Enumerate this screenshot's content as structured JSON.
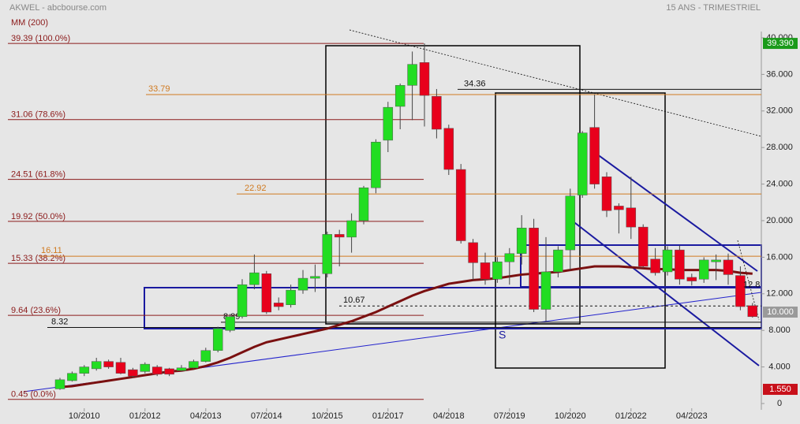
{
  "chart_data": {
    "type": "candlestick",
    "source": "AKWEL - abcbourse.com",
    "subtitle": "MM (200)",
    "period": "15 ANS - TRIMESTRIEL",
    "categories": [
      null,
      null,
      "10/2010",
      null,
      null,
      null,
      null,
      "01/2012",
      null,
      null,
      null,
      null,
      "04/2013",
      null,
      null,
      null,
      null,
      "07/2014",
      null,
      null,
      null,
      null,
      "10/2015",
      null,
      null,
      null,
      null,
      "01/2017",
      null,
      null,
      null,
      null,
      "04/2018",
      null,
      null,
      null,
      null,
      "07/2019",
      null,
      null,
      null,
      null,
      "10/2020",
      null,
      null,
      null,
      null,
      "01/2022",
      null,
      null,
      null,
      null,
      "04/2023",
      null,
      null,
      null,
      null,
      null
    ],
    "open": [
      1.6,
      2.5,
      3.3,
      3.8,
      4.6,
      4.5,
      3.7,
      3.5,
      4.0,
      3.8,
      3.6,
      3.9,
      4.6,
      5.8,
      8.0,
      9.5,
      13.0,
      14.2,
      11.0,
      10.8,
      12.4,
      13.7,
      14.2,
      18.5,
      18.2,
      20.0,
      23.6,
      28.8,
      32.5,
      34.8,
      37.3,
      33.6,
      30.1,
      25.6,
      17.6,
      15.4,
      13.6,
      15.5,
      16.4,
      19.2,
      10.3,
      14.4,
      16.8,
      22.8,
      30.2,
      24.8,
      21.6,
      21.4,
      19.3,
      15.8,
      14.4,
      16.8,
      13.8,
      13.6,
      15.5,
      15.7,
      14.0,
      10.7
    ],
    "high": [
      2.8,
      3.5,
      4.2,
      5.0,
      4.8,
      5.0,
      3.9,
      4.5,
      4.2,
      3.9,
      4.2,
      4.8,
      6.1,
      8.4,
      9.8,
      13.6,
      16.3,
      14.5,
      11.6,
      13.0,
      14.6,
      15.2,
      18.8,
      19.0,
      20.8,
      23.8,
      28.9,
      33.0,
      35.0,
      38.5,
      39.4,
      34.4,
      30.5,
      26.2,
      18.0,
      16.5,
      16.0,
      17.0,
      20.6,
      20.2,
      18.2,
      17.2,
      23.5,
      29.8,
      33.8,
      25.3,
      21.9,
      24.8,
      19.6,
      17.0,
      17.2,
      17.3,
      14.2,
      16.0,
      16.3,
      16.4,
      15.0,
      11.0
    ],
    "low": [
      1.5,
      2.4,
      3.0,
      3.6,
      3.8,
      3.2,
      2.8,
      3.3,
      3.0,
      3.0,
      3.5,
      3.8,
      4.5,
      5.6,
      7.8,
      9.3,
      12.5,
      9.8,
      10.2,
      10.5,
      12.0,
      12.2,
      13.8,
      15.0,
      16.5,
      19.6,
      23.0,
      27.5,
      30.0,
      31.0,
      30.3,
      29.0,
      25.0,
      17.5,
      13.5,
      13.0,
      13.2,
      13.0,
      15.2,
      10.0,
      9.0,
      13.8,
      14.6,
      22.5,
      23.5,
      20.4,
      18.6,
      18.0,
      14.8,
      14.0,
      14.0,
      13.0,
      12.9,
      13.2,
      13.5,
      13.0,
      10.2,
      9.4
    ],
    "close": [
      2.6,
      3.3,
      4.0,
      4.6,
      4.0,
      3.3,
      3.0,
      4.3,
      3.2,
      3.2,
      3.9,
      4.6,
      5.8,
      8.2,
      9.5,
      13.0,
      14.3,
      10.0,
      10.6,
      12.4,
      13.7,
      13.9,
      18.5,
      18.2,
      20.0,
      23.6,
      28.6,
      32.4,
      34.8,
      37.1,
      33.7,
      30.0,
      25.6,
      17.8,
      15.4,
      13.6,
      15.5,
      16.4,
      19.2,
      10.3,
      14.4,
      16.8,
      22.7,
      29.6,
      24.0,
      21.1,
      21.2,
      19.3,
      15.0,
      14.3,
      16.8,
      13.6,
      13.4,
      15.7,
      15.7,
      14.1,
      10.6,
      9.5
    ],
    "up_color": "#22dd22",
    "down_color": "#e8001c",
    "moving_average": {
      "color": "#7a1010",
      "values": [
        1.8,
        1.9,
        2.1,
        2.3,
        2.5,
        2.7,
        2.9,
        3.1,
        3.3,
        3.5,
        3.6,
        3.8,
        4.1,
        4.5,
        5.0,
        5.6,
        6.2,
        6.7,
        7.0,
        7.3,
        7.6,
        7.9,
        8.2,
        8.6,
        9.0,
        9.5,
        10.0,
        10.6,
        11.2,
        11.8,
        12.3,
        12.7,
        13.1,
        13.3,
        13.5,
        13.6,
        13.7,
        13.9,
        14.1,
        14.2,
        14.3,
        14.4,
        14.6,
        14.8,
        15.0,
        15.0,
        15.0,
        14.9,
        14.8,
        14.7,
        14.7,
        14.6,
        14.6,
        14.6,
        14.6,
        14.5,
        14.3,
        14.2
      ]
    },
    "fib_levels": [
      {
        "value": 39.39,
        "label": "39.39 (100.0%)"
      },
      {
        "value": 31.06,
        "label": "31.06 (78.6%)"
      },
      {
        "value": 24.51,
        "label": "24.51 (61.8%)"
      },
      {
        "value": 19.92,
        "label": "19.92 (50.0%)"
      },
      {
        "value": 15.33,
        "label": "15.33 (38.2%)"
      },
      {
        "value": 9.64,
        "label": "9.64 (23.6%)"
      },
      {
        "value": 0.45,
        "label": "0.45 (0.0%)"
      }
    ],
    "fib_color": "#8b1a1a",
    "levels": [
      33.79,
      22.92,
      16.11,
      34.36,
      10.67,
      8.89,
      8.32
    ],
    "last_label": 12.8,
    "signal": "S",
    "ylim": [
      0,
      40
    ],
    "yticks": [
      {
        "value": 40,
        "label": "40.000"
      },
      {
        "value": 36,
        "label": "36.000"
      },
      {
        "value": 32,
        "label": "32.000"
      },
      {
        "value": 28,
        "label": "28.000"
      },
      {
        "value": 24,
        "label": "24.000"
      },
      {
        "value": 20,
        "label": "20.000"
      },
      {
        "value": 16,
        "label": "16.000"
      },
      {
        "value": 12,
        "label": "12.000"
      },
      {
        "value": 8,
        "label": "8.000"
      },
      {
        "value": 4,
        "label": "4.000"
      },
      0
    ],
    "price_tags": [
      {
        "value": 39.39,
        "label": "39.390",
        "color": "#1a9a1a"
      },
      {
        "value": 10,
        "label": "10.000",
        "color": "#9a9a9a"
      },
      {
        "value": 1.55,
        "label": "1.550",
        "color": "#c8101a"
      }
    ]
  }
}
